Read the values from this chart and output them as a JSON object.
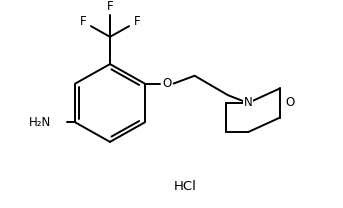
{
  "background_color": "#ffffff",
  "line_color": "#000000",
  "line_width": 1.4,
  "font_size": 8.5,
  "hcl_text": "HCl",
  "h2n_text": "H₂N",
  "o_text": "O",
  "n_text": "N",
  "o_morph_text": "O",
  "f_texts": [
    "F",
    "F",
    "F"
  ],
  "fig_width": 3.43,
  "fig_height": 2.08,
  "dpi": 100
}
